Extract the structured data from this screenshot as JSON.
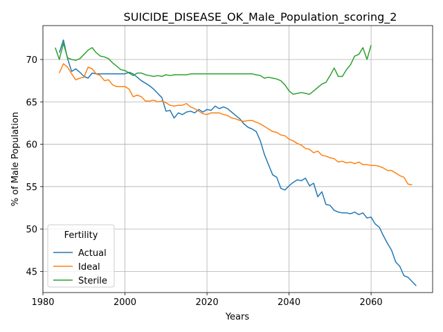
{
  "chart_data": {
    "type": "line",
    "title": "SUICIDE_DISEASE_OK_Male_Population_scoring_2",
    "xlabel": "Years",
    "ylabel": "% of Male Population",
    "xlim": [
      1980,
      2075
    ],
    "ylim": [
      42.5,
      74
    ],
    "xticks": [
      1980,
      2000,
      2020,
      2040,
      2060
    ],
    "yticks": [
      45,
      50,
      55,
      60,
      65,
      70
    ],
    "grid": true,
    "legend": {
      "title": "Fertility",
      "position": "lower-left"
    },
    "series": [
      {
        "name": "Actual",
        "color": "#1f77b4",
        "points": [
          [
            1984,
            70.8
          ],
          [
            1985,
            72.3
          ],
          [
            1986,
            70.1
          ],
          [
            1987,
            68.6
          ],
          [
            1988,
            68.9
          ],
          [
            1989,
            68.5
          ],
          [
            1990,
            68.0
          ],
          [
            1991,
            67.8
          ],
          [
            1992,
            68.4
          ],
          [
            1993,
            68.3
          ],
          [
            1995,
            68.3
          ],
          [
            2000,
            68.3
          ],
          [
            2001,
            68.5
          ],
          [
            2002,
            68.3
          ],
          [
            2003,
            67.9
          ],
          [
            2004,
            67.5
          ],
          [
            2005,
            67.2
          ],
          [
            2006,
            66.9
          ],
          [
            2007,
            66.5
          ],
          [
            2008,
            66.0
          ],
          [
            2009,
            65.5
          ],
          [
            2010,
            63.9
          ],
          [
            2011,
            64.0
          ],
          [
            2012,
            63.1
          ],
          [
            2013,
            63.7
          ],
          [
            2014,
            63.5
          ],
          [
            2015,
            63.8
          ],
          [
            2016,
            63.9
          ],
          [
            2017,
            63.7
          ],
          [
            2018,
            64.1
          ],
          [
            2019,
            63.8
          ],
          [
            2020,
            64.1
          ],
          [
            2021,
            64.0
          ],
          [
            2022,
            64.5
          ],
          [
            2023,
            64.2
          ],
          [
            2024,
            64.4
          ],
          [
            2025,
            64.2
          ],
          [
            2026,
            63.8
          ],
          [
            2027,
            63.4
          ],
          [
            2028,
            63.0
          ],
          [
            2029,
            62.4
          ],
          [
            2030,
            62.0
          ],
          [
            2031,
            61.8
          ],
          [
            2032,
            61.5
          ],
          [
            2033,
            60.4
          ],
          [
            2034,
            58.8
          ],
          [
            2035,
            57.6
          ],
          [
            2036,
            56.4
          ],
          [
            2037,
            56.1
          ],
          [
            2038,
            54.8
          ],
          [
            2039,
            54.6
          ],
          [
            2040,
            55.1
          ],
          [
            2041,
            55.5
          ],
          [
            2042,
            55.8
          ],
          [
            2043,
            55.7
          ],
          [
            2044,
            56.0
          ],
          [
            2045,
            55.1
          ],
          [
            2046,
            55.4
          ],
          [
            2047,
            53.8
          ],
          [
            2048,
            54.4
          ],
          [
            2049,
            52.9
          ],
          [
            2050,
            52.8
          ],
          [
            2051,
            52.2
          ],
          [
            2052,
            52.0
          ],
          [
            2053,
            51.9
          ],
          [
            2054,
            51.9
          ],
          [
            2055,
            51.8
          ],
          [
            2056,
            52.0
          ],
          [
            2057,
            51.7
          ],
          [
            2058,
            51.9
          ],
          [
            2059,
            51.3
          ],
          [
            2060,
            51.4
          ],
          [
            2061,
            50.6
          ],
          [
            2062,
            50.2
          ],
          [
            2063,
            49.2
          ],
          [
            2064,
            48.3
          ],
          [
            2065,
            47.5
          ],
          [
            2066,
            46.1
          ],
          [
            2067,
            45.6
          ],
          [
            2068,
            44.5
          ],
          [
            2069,
            44.3
          ],
          [
            2070,
            43.8
          ],
          [
            2071,
            43.3
          ]
        ]
      },
      {
        "name": "Ideal",
        "color": "#ff7f0e",
        "points": [
          [
            1984,
            68.4
          ],
          [
            1985,
            69.5
          ],
          [
            1986,
            69.1
          ],
          [
            1987,
            68.3
          ],
          [
            1988,
            67.6
          ],
          [
            1989,
            67.8
          ],
          [
            1990,
            67.9
          ],
          [
            1991,
            69.1
          ],
          [
            1992,
            68.9
          ],
          [
            1993,
            68.3
          ],
          [
            1994,
            68.1
          ],
          [
            1995,
            67.5
          ],
          [
            1996,
            67.6
          ],
          [
            1997,
            67.0
          ],
          [
            1998,
            66.8
          ],
          [
            1999,
            66.8
          ],
          [
            2000,
            66.8
          ],
          [
            2001,
            66.5
          ],
          [
            2002,
            65.6
          ],
          [
            2003,
            65.8
          ],
          [
            2004,
            65.6
          ],
          [
            2005,
            65.1
          ],
          [
            2006,
            65.1
          ],
          [
            2007,
            65.2
          ],
          [
            2008,
            65.0
          ],
          [
            2009,
            65.1
          ],
          [
            2010,
            64.9
          ],
          [
            2011,
            64.6
          ],
          [
            2012,
            64.5
          ],
          [
            2013,
            64.6
          ],
          [
            2014,
            64.6
          ],
          [
            2015,
            64.8
          ],
          [
            2016,
            64.4
          ],
          [
            2017,
            64.2
          ],
          [
            2018,
            63.9
          ],
          [
            2019,
            63.6
          ],
          [
            2020,
            63.5
          ],
          [
            2021,
            63.7
          ],
          [
            2022,
            63.7
          ],
          [
            2023,
            63.7
          ],
          [
            2024,
            63.5
          ],
          [
            2025,
            63.4
          ],
          [
            2026,
            63.1
          ],
          [
            2027,
            63.0
          ],
          [
            2028,
            62.8
          ],
          [
            2029,
            62.7
          ],
          [
            2030,
            62.8
          ],
          [
            2031,
            62.8
          ],
          [
            2032,
            62.6
          ],
          [
            2033,
            62.4
          ],
          [
            2034,
            62.1
          ],
          [
            2035,
            61.8
          ],
          [
            2036,
            61.5
          ],
          [
            2037,
            61.4
          ],
          [
            2038,
            61.1
          ],
          [
            2039,
            61.0
          ],
          [
            2040,
            60.6
          ],
          [
            2041,
            60.4
          ],
          [
            2042,
            60.1
          ],
          [
            2043,
            59.9
          ],
          [
            2044,
            59.5
          ],
          [
            2045,
            59.4
          ],
          [
            2046,
            59.0
          ],
          [
            2047,
            59.2
          ],
          [
            2048,
            58.7
          ],
          [
            2049,
            58.6
          ],
          [
            2050,
            58.4
          ],
          [
            2051,
            58.3
          ],
          [
            2052,
            57.9
          ],
          [
            2053,
            58.0
          ],
          [
            2054,
            57.8
          ],
          [
            2055,
            57.9
          ],
          [
            2056,
            57.7
          ],
          [
            2057,
            57.9
          ],
          [
            2058,
            57.6
          ],
          [
            2059,
            57.6
          ],
          [
            2060,
            57.5
          ],
          [
            2061,
            57.5
          ],
          [
            2062,
            57.4
          ],
          [
            2063,
            57.2
          ],
          [
            2064,
            56.9
          ],
          [
            2065,
            56.9
          ],
          [
            2066,
            56.6
          ],
          [
            2067,
            56.3
          ],
          [
            2068,
            56.1
          ],
          [
            2069,
            55.3
          ],
          [
            2070,
            55.2
          ]
        ]
      },
      {
        "name": "Sterile",
        "color": "#2ca02c",
        "points": [
          [
            1983,
            71.4
          ],
          [
            1984,
            70.0
          ],
          [
            1985,
            71.9
          ],
          [
            1986,
            70.2
          ],
          [
            1987,
            70.0
          ],
          [
            1988,
            69.9
          ],
          [
            1989,
            70.1
          ],
          [
            1990,
            70.6
          ],
          [
            1991,
            71.1
          ],
          [
            1992,
            71.4
          ],
          [
            1993,
            70.8
          ],
          [
            1994,
            70.4
          ],
          [
            1995,
            70.3
          ],
          [
            1996,
            70.1
          ],
          [
            1997,
            69.6
          ],
          [
            1998,
            69.2
          ],
          [
            1999,
            68.8
          ],
          [
            2000,
            68.7
          ],
          [
            2001,
            68.4
          ],
          [
            2002,
            68.1
          ],
          [
            2003,
            68.4
          ],
          [
            2004,
            68.4
          ],
          [
            2005,
            68.2
          ],
          [
            2006,
            68.1
          ],
          [
            2007,
            68.0
          ],
          [
            2008,
            68.1
          ],
          [
            2009,
            68.0
          ],
          [
            2010,
            68.2
          ],
          [
            2011,
            68.1
          ],
          [
            2012,
            68.2
          ],
          [
            2013,
            68.2
          ],
          [
            2014,
            68.2
          ],
          [
            2015,
            68.2
          ],
          [
            2016,
            68.3
          ],
          [
            2018,
            68.3
          ],
          [
            2020,
            68.3
          ],
          [
            2025,
            68.3
          ],
          [
            2030,
            68.3
          ],
          [
            2031,
            68.3
          ],
          [
            2032,
            68.2
          ],
          [
            2033,
            68.1
          ],
          [
            2034,
            67.8
          ],
          [
            2035,
            67.9
          ],
          [
            2036,
            67.8
          ],
          [
            2037,
            67.7
          ],
          [
            2038,
            67.5
          ],
          [
            2039,
            67.0
          ],
          [
            2040,
            66.3
          ],
          [
            2041,
            65.9
          ],
          [
            2042,
            66.0
          ],
          [
            2043,
            66.1
          ],
          [
            2044,
            66.0
          ],
          [
            2045,
            65.9
          ],
          [
            2046,
            66.3
          ],
          [
            2047,
            66.7
          ],
          [
            2048,
            67.1
          ],
          [
            2049,
            67.3
          ],
          [
            2050,
            68.1
          ],
          [
            2051,
            69.0
          ],
          [
            2052,
            68.0
          ],
          [
            2053,
            68.0
          ],
          [
            2054,
            68.8
          ],
          [
            2055,
            69.4
          ],
          [
            2056,
            70.4
          ],
          [
            2057,
            70.6
          ],
          [
            2058,
            71.4
          ],
          [
            2059,
            70.0
          ],
          [
            2060,
            71.7
          ]
        ]
      }
    ]
  }
}
